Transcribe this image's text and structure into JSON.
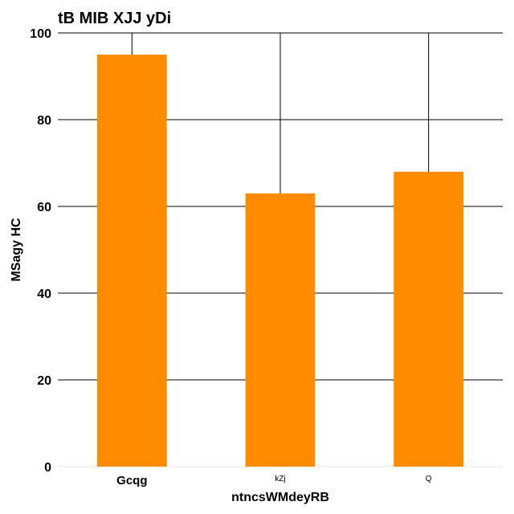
{
  "chart_data": {
    "type": "bar",
    "title": "tB MIB XJJ yDi",
    "xlabel": "ntncsWMdeyRB",
    "ylabel": "MSagy HC",
    "categories": [
      "Gcqg",
      "kZj",
      "Q"
    ],
    "values": [
      95,
      63,
      68
    ],
    "ylim": [
      0,
      100
    ],
    "yticks": [
      0,
      20,
      40,
      60,
      80,
      100
    ],
    "grid": true,
    "bar_color": "#ff8c00",
    "grid_color": "#000000"
  }
}
